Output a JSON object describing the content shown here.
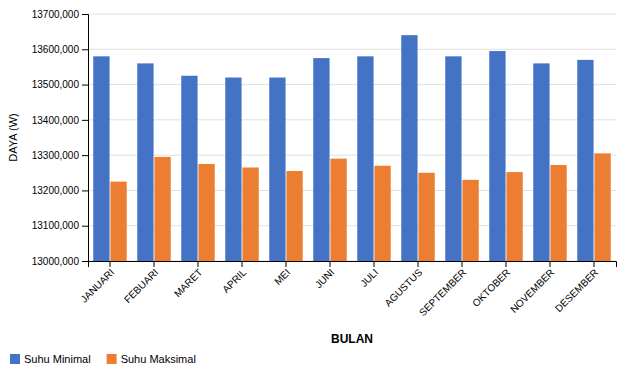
{
  "chart_data": {
    "type": "bar",
    "categories": [
      "JANUARI",
      "FEBUARI",
      "MARET",
      "APRIL",
      "MEI",
      "JUNI",
      "JULI",
      "AGUSTUS",
      "SEPTEMBER",
      "OKTOBER",
      "NOVEMBER",
      "DESEMBER"
    ],
    "series": [
      {
        "name": "Suhu Minimal",
        "color": "#4472C4",
        "values": [
          13580000,
          13560000,
          13525000,
          13520000,
          13520000,
          13575000,
          13580000,
          13640000,
          13580000,
          13595000,
          13560000,
          13570000
        ]
      },
      {
        "name": "Suhu Maksimal",
        "color": "#ED7D31",
        "values": [
          13225000,
          13295000,
          13275000,
          13265000,
          13255000,
          13290000,
          13270000,
          13250000,
          13230000,
          13252000,
          13272000,
          13305000
        ]
      }
    ],
    "xlabel": "BULAN",
    "ylabel": "DAYA (W)",
    "ylim": [
      13000000,
      13700000
    ],
    "yticks": [
      {
        "value": 13000000,
        "label": "13000,000"
      },
      {
        "value": 13100000,
        "label": "13100,000"
      },
      {
        "value": 13200000,
        "label": "13200,000"
      },
      {
        "value": 13300000,
        "label": "13300,000"
      },
      {
        "value": 13400000,
        "label": "13400,000"
      },
      {
        "value": 13500000,
        "label": "13500,000"
      },
      {
        "value": 13600000,
        "label": "13600,000"
      },
      {
        "value": 13700000,
        "label": "13700,000"
      }
    ],
    "grid": true,
    "legend": "lower left"
  }
}
